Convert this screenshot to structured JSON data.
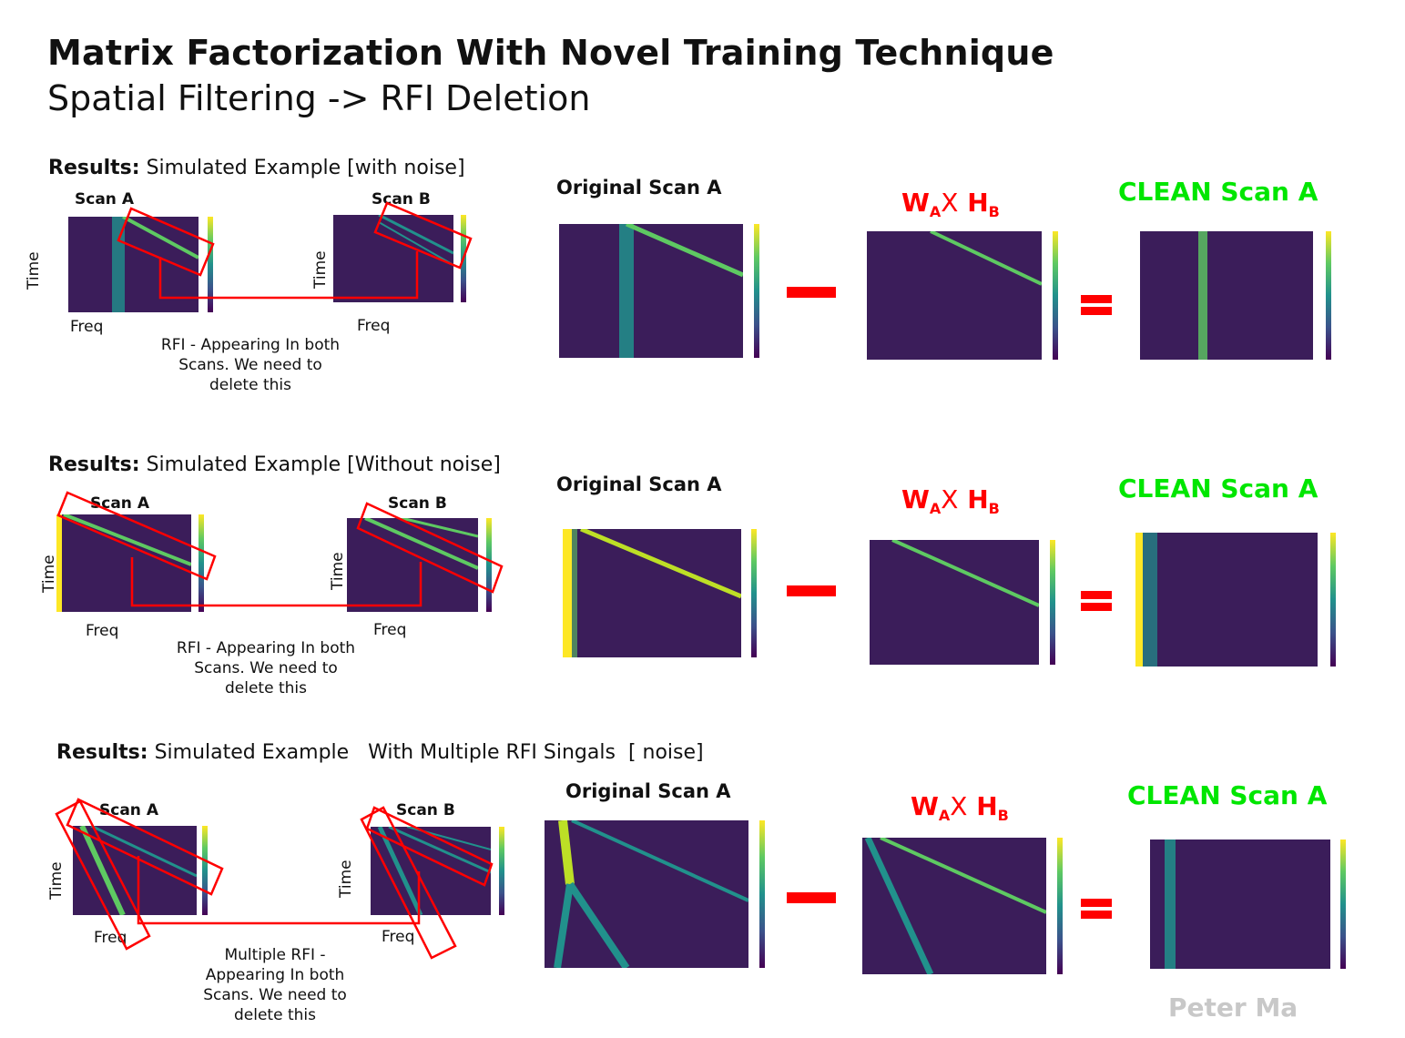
{
  "title": "Matrix Factorization With Novel Training Technique",
  "subtitle": "Spatial Filtering -> RFI Deletion",
  "rows": [
    {
      "results_bold": "Results:",
      "results_text": "Simulated Example [with noise]",
      "scan_a": "Scan A",
      "scan_b": "Scan B",
      "time": "Time",
      "freq": "Freq",
      "note_lines": [
        "RFI - Appearing In both",
        "Scans. We need to",
        "delete this"
      ],
      "original": "Original Scan A",
      "clean": "CLEAN Scan A"
    },
    {
      "results_bold": "Results:",
      "results_text": "Simulated Example [Without noise]",
      "scan_a": "Scan A",
      "scan_b": "Scan B",
      "time": "Time",
      "freq": "Freq",
      "note_lines": [
        "RFI - Appearing In both",
        "Scans. We need to",
        "delete this"
      ],
      "original": "Original Scan A",
      "clean": "CLEAN Scan A"
    },
    {
      "results_bold": "Results:",
      "results_text": "Simulated Example   With Multiple RFI Singals  [ noise]",
      "scan_a": "Scan A",
      "scan_b": "Scan B",
      "time": "Time",
      "freq": "Freq",
      "note_lines": [
        "Multiple RFI -",
        "Appearing In both",
        "Scans. We need to",
        "delete this"
      ],
      "original": "Original Scan A",
      "clean": "CLEAN Scan A"
    }
  ],
  "wh": {
    "w": "W",
    "w_sub": "A",
    "x": "X",
    "h": "H",
    "h_sub": "B"
  },
  "author": "Peter Ma",
  "colors": {
    "accent_red": "#ff0000",
    "clean_green": "#00e600",
    "plot_bg": "#3b1d5a"
  }
}
